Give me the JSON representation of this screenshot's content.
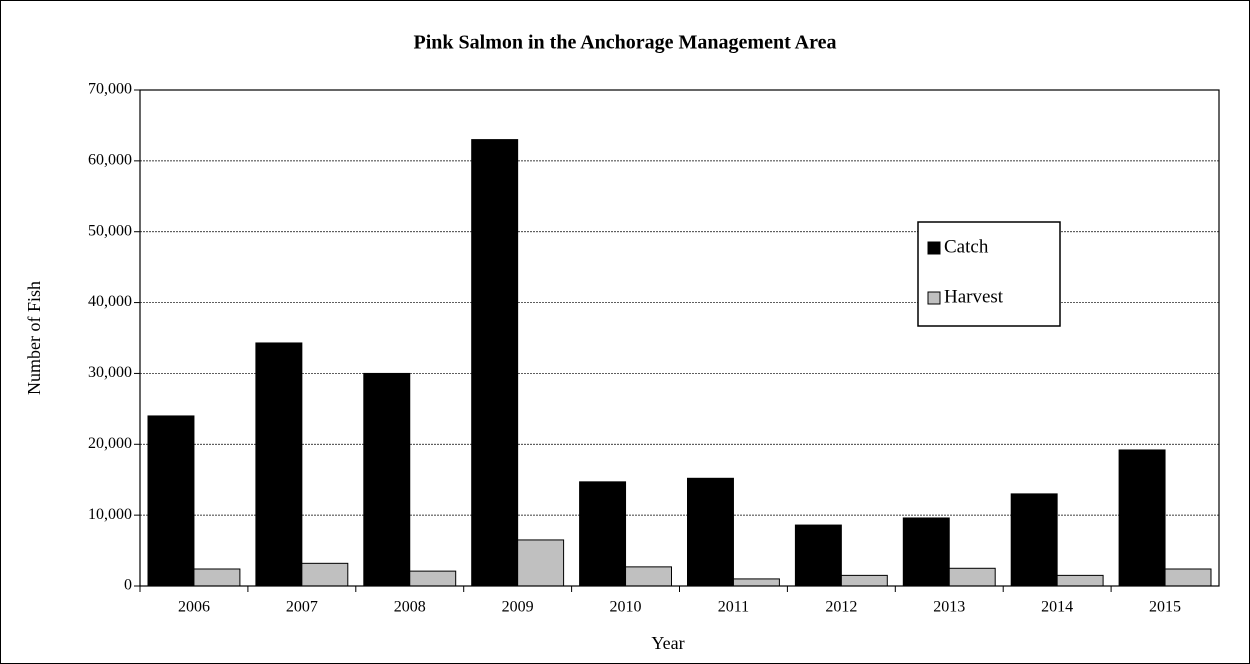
{
  "chart_data": {
    "type": "bar",
    "title": "Pink Salmon in the Anchorage Management Area",
    "x_label": "Year",
    "y_label": "Number of Fish",
    "categories": [
      "2006",
      "2007",
      "2008",
      "2009",
      "2010",
      "2011",
      "2012",
      "2013",
      "2014",
      "2015"
    ],
    "series": [
      {
        "name": "Catch",
        "color": "#000000",
        "values": [
          24000,
          34300,
          30000,
          63000,
          14700,
          15200,
          8600,
          9600,
          13000,
          19200
        ]
      },
      {
        "name": "Harvest",
        "color": "#c0c0c0",
        "values": [
          2400,
          3200,
          2100,
          6500,
          2700,
          1000,
          1500,
          2500,
          1500,
          2400
        ]
      }
    ],
    "ylim": [
      0,
      70000
    ],
    "yticks": [
      0,
      {
        "value": 10000,
        "label": "10,000"
      },
      {
        "value": 20000,
        "label": "20,000"
      },
      {
        "value": 30000,
        "label": "30,000"
      },
      {
        "value": 40000,
        "label": "40,000"
      },
      {
        "value": 50000,
        "label": "50,000"
      },
      {
        "value": 60000,
        "label": "60,000"
      },
      {
        "value": 70000,
        "label": "70,000"
      }
    ],
    "grid": true,
    "legend": "right"
  }
}
